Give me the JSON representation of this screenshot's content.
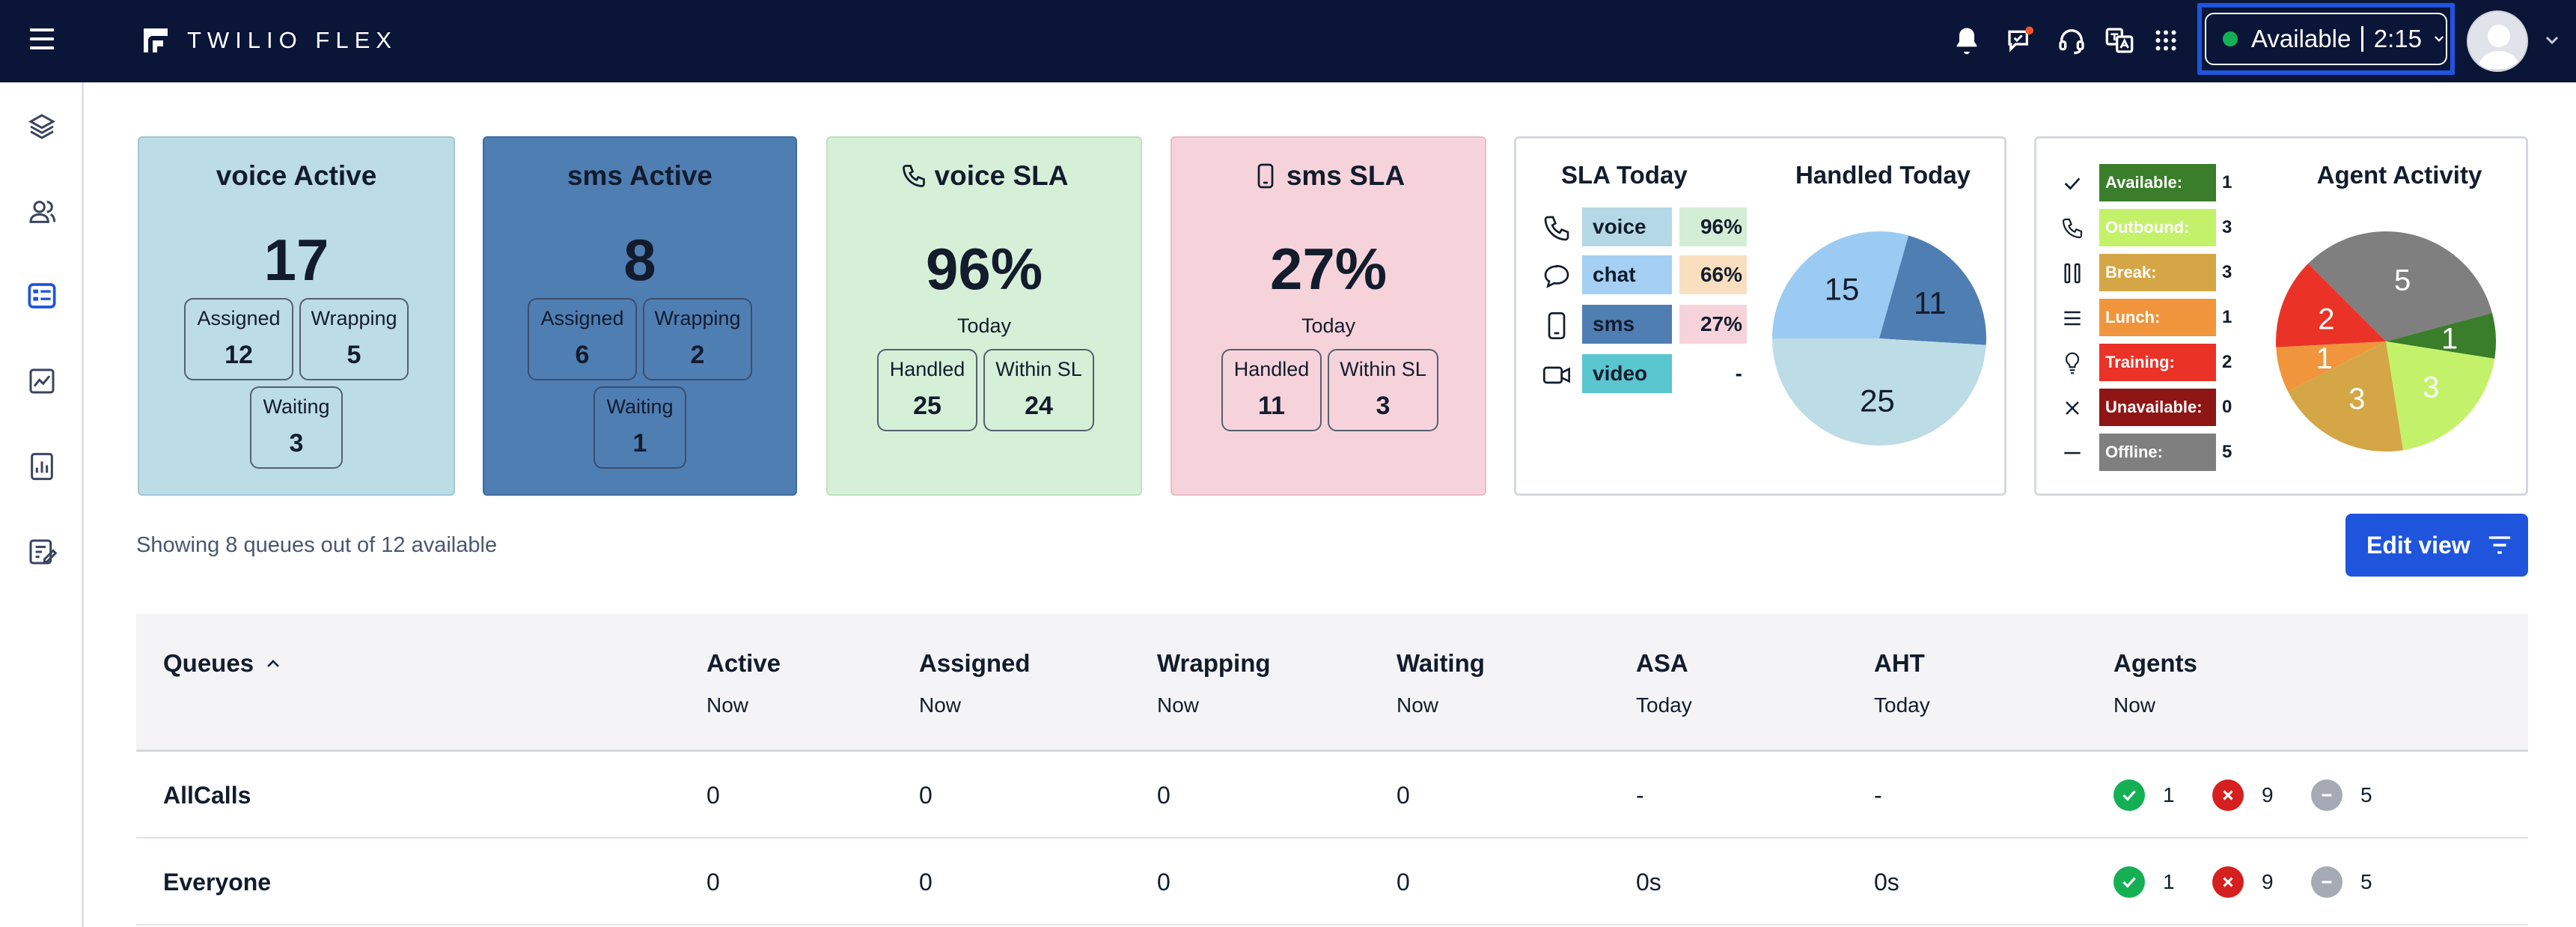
{
  "header": {
    "brand": "TWILIO FLEX",
    "status": {
      "label": "Available",
      "time": "2:15",
      "color": "#14b053"
    }
  },
  "sidebar": {
    "items": [
      {
        "name": "layers-icon"
      },
      {
        "name": "agents-icon"
      },
      {
        "name": "queues-stats-icon",
        "active": true
      },
      {
        "name": "analytics-icon"
      },
      {
        "name": "reports-icon"
      },
      {
        "name": "tasks-icon"
      }
    ]
  },
  "tiles": {
    "voice_active": {
      "title": "voice Active",
      "total": "17",
      "assigned_label": "Assigned",
      "assigned": "12",
      "wrapping_label": "Wrapping",
      "wrapping": "5",
      "waiting_label": "Waiting",
      "waiting": "3",
      "bg": "#bcdce6"
    },
    "sms_active": {
      "title": "sms Active",
      "total": "8",
      "assigned_label": "Assigned",
      "assigned": "6",
      "wrapping_label": "Wrapping",
      "wrapping": "2",
      "waiting_label": "Waiting",
      "waiting": "1",
      "bg": "#4f7eb3"
    },
    "voice_sla": {
      "title": "voice SLA",
      "pct": "96%",
      "today": "Today",
      "handled_label": "Handled",
      "handled": "25",
      "within_label": "Within SL",
      "within": "24",
      "bg": "#d6f0d7"
    },
    "sms_sla": {
      "title": "sms SLA",
      "pct": "27%",
      "today": "Today",
      "handled_label": "Handled",
      "handled": "11",
      "within_label": "Within SL",
      "within": "3",
      "bg": "#f6d3da"
    },
    "sla_today": {
      "title": "SLA Today",
      "rows": [
        {
          "channel": "voice",
          "pct": "96%",
          "name_bg": "#b5d8e6",
          "pct_bg": "#d4eed5",
          "icon": "phone-icon"
        },
        {
          "channel": "chat",
          "pct": "66%",
          "name_bg": "#a5d0f4",
          "pct_bg": "#f9dfbf",
          "icon": "chat-icon"
        },
        {
          "channel": "sms",
          "pct": "27%",
          "name_bg": "#4f7eb3",
          "pct_bg": "#f6d3da",
          "icon": "mobile-icon"
        },
        {
          "channel": "video",
          "pct": "-",
          "name_bg": "#5ac6cf",
          "pct_bg": "#ffffff",
          "icon": "video-icon"
        }
      ]
    },
    "handled_today": {
      "title": "Handled Today",
      "chart_data": {
        "type": "pie",
        "slices": [
          {
            "label": "15",
            "value": 15,
            "color": "#9bcbf2"
          },
          {
            "label": "11",
            "value": 11,
            "color": "#4f7eb3"
          },
          {
            "label": "25",
            "value": 25,
            "color": "#bcdce6"
          }
        ]
      }
    },
    "agent_activity": {
      "title": "Agent Activity",
      "rows": [
        {
          "label": "Available:",
          "value": "1",
          "color": "#3a7d2a",
          "icon": "check-icon"
        },
        {
          "label": "Outbound:",
          "value": "3",
          "color": "#c3f26a",
          "icon": "phone-icon"
        },
        {
          "label": "Break:",
          "value": "3",
          "color": "#d5a645",
          "icon": "pause-icon"
        },
        {
          "label": "Lunch:",
          "value": "1",
          "color": "#f0953c",
          "icon": "list-icon"
        },
        {
          "label": "Training:",
          "value": "2",
          "color": "#ea3226",
          "icon": "lightbulb-icon"
        },
        {
          "label": "Unavailable:",
          "value": "0",
          "color": "#8f1515",
          "icon": "x-icon"
        },
        {
          "label": "Offline:",
          "value": "5",
          "color": "#7f7f7f",
          "icon": "dash-icon"
        }
      ],
      "chart_data": {
        "type": "pie",
        "slices": [
          {
            "label": "5",
            "value": 5,
            "color": "#7f7f7f"
          },
          {
            "label": "1",
            "value": 1,
            "color": "#3a7d2a"
          },
          {
            "label": "3",
            "value": 3,
            "color": "#c3f26a"
          },
          {
            "label": "3",
            "value": 3,
            "color": "#d5a645"
          },
          {
            "label": "1",
            "value": 1,
            "color": "#f0953c"
          },
          {
            "label": "2",
            "value": 2,
            "color": "#ea3226"
          }
        ]
      }
    }
  },
  "controls": {
    "showing": "Showing 8 queues out of 12 available",
    "edit_view": "Edit view"
  },
  "table": {
    "columns": [
      {
        "label": "Queues",
        "sub": ""
      },
      {
        "label": "Active",
        "sub": "Now"
      },
      {
        "label": "Assigned",
        "sub": "Now"
      },
      {
        "label": "Wrapping",
        "sub": "Now"
      },
      {
        "label": "Waiting",
        "sub": "Now"
      },
      {
        "label": "ASA",
        "sub": "Today"
      },
      {
        "label": "AHT",
        "sub": "Today"
      },
      {
        "label": "Agents",
        "sub": "Now"
      }
    ],
    "rows": [
      {
        "queue": "AllCalls",
        "active": "0",
        "assigned": "0",
        "wrapping": "0",
        "waiting": "0",
        "asa": "-",
        "aht": "-",
        "agents_available": "1",
        "agents_unavailable": "9",
        "agents_offline": "5"
      },
      {
        "queue": "Everyone",
        "active": "0",
        "assigned": "0",
        "wrapping": "0",
        "waiting": "0",
        "asa": "0s",
        "aht": "0s",
        "agents_available": "1",
        "agents_unavailable": "9",
        "agents_offline": "5"
      }
    ]
  }
}
